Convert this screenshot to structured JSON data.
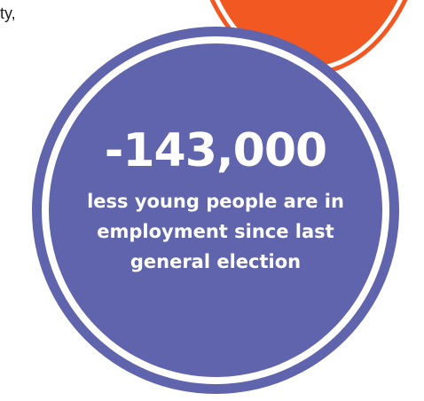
{
  "corner_text": "ty,",
  "stat": {
    "number": "-143,000",
    "description_lines": [
      "less young people are in",
      "employment since last",
      "general election"
    ]
  },
  "colors": {
    "purple": "#5f64ad",
    "orange": "#f25822",
    "ring": "#ffffff",
    "text": "#ffffff"
  }
}
